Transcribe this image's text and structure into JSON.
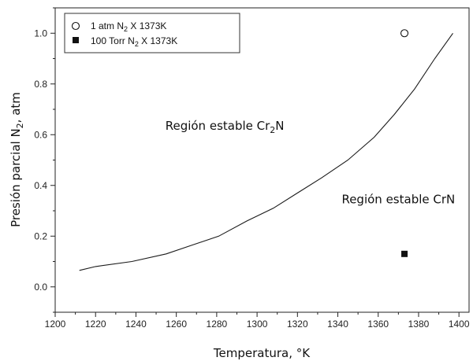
{
  "chart_data": {
    "type": "line",
    "xlabel_main": "Temperatura, °K",
    "ylabel_main": "Presión parcial N",
    "ylabel_sub": "2",
    "ylabel_tail": ", atm",
    "xlim": [
      1200,
      1405
    ],
    "ylim": [
      -0.1,
      1.1
    ],
    "xticks": [
      1200,
      1220,
      1240,
      1260,
      1280,
      1300,
      1320,
      1340,
      1360,
      1380,
      1400
    ],
    "xtick_labels": [
      "1200",
      "1220",
      "1240",
      "1260",
      "1280",
      "1300",
      "1320",
      "1340",
      "1360",
      "1380",
      "1400"
    ],
    "yticks": [
      0.0,
      0.2,
      0.4,
      0.6,
      0.8,
      1.0
    ],
    "ytick_labels": [
      "0.0",
      "0.2",
      "0.4",
      "0.6",
      "0.8",
      "1.0"
    ],
    "curve": {
      "x": [
        1212,
        1220,
        1238,
        1255,
        1268,
        1281,
        1295,
        1308,
        1320,
        1332,
        1345,
        1358,
        1368,
        1378,
        1388,
        1397
      ],
      "y": [
        0.065,
        0.08,
        0.1,
        0.13,
        0.165,
        0.2,
        0.26,
        0.31,
        0.37,
        0.43,
        0.5,
        0.59,
        0.68,
        0.78,
        0.9,
        1.0
      ]
    },
    "points": [
      {
        "marker": "open-circle",
        "x": 1373,
        "y": 1.0
      },
      {
        "marker": "filled-square",
        "x": 1373,
        "y": 0.13
      }
    ],
    "legend": [
      {
        "marker": "open-circle",
        "text_a": "1 atm N",
        "sub": "2",
        "text_b": " X 1373K"
      },
      {
        "marker": "filled-square",
        "text_a": "100 Torr N",
        "sub": "2",
        "text_b": " X 1373K"
      }
    ],
    "annotations": [
      {
        "text_a": "Región estable Cr",
        "sub": "2",
        "text_b": "N",
        "x": 1284,
        "y": 0.62
      },
      {
        "text": "Región estable CrN",
        "x": 1370,
        "y": 0.33
      }
    ],
    "legend_position": "top-left",
    "grid": false,
    "colors": {
      "line": "#1a1a1a",
      "marker": "#111111",
      "frame": "#222222"
    }
  }
}
